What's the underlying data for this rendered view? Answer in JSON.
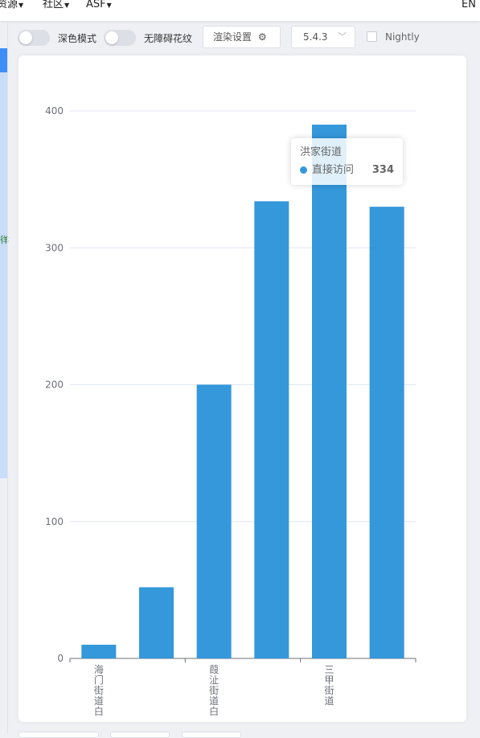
{
  "nav": {
    "items": [
      {
        "label": "资源"
      },
      {
        "label": "社区"
      },
      {
        "label": "ASF"
      }
    ],
    "lang": "EN"
  },
  "toolbar": {
    "dark_mode_label": "深色模式",
    "aria_label": "无障碍花纹",
    "render_settings_label": "渲染设置",
    "version_value": "5.4.3",
    "nightly_label": "Nightly"
  },
  "chart_data": {
    "type": "bar",
    "categories": [
      "海门街道白",
      "",
      "葭沚街道白",
      "",
      "三甲街道",
      ""
    ],
    "series": [
      {
        "name": "直接访问",
        "values": [
          10,
          52,
          200,
          334,
          390,
          330
        ]
      }
    ],
    "ylim": [
      0,
      400
    ],
    "yticks": [
      0,
      100,
      200,
      300,
      400
    ],
    "grid": true,
    "color": "#3498db"
  },
  "tooltip": {
    "title": "洪家街道",
    "series_name": "直接访问",
    "value": "334"
  }
}
